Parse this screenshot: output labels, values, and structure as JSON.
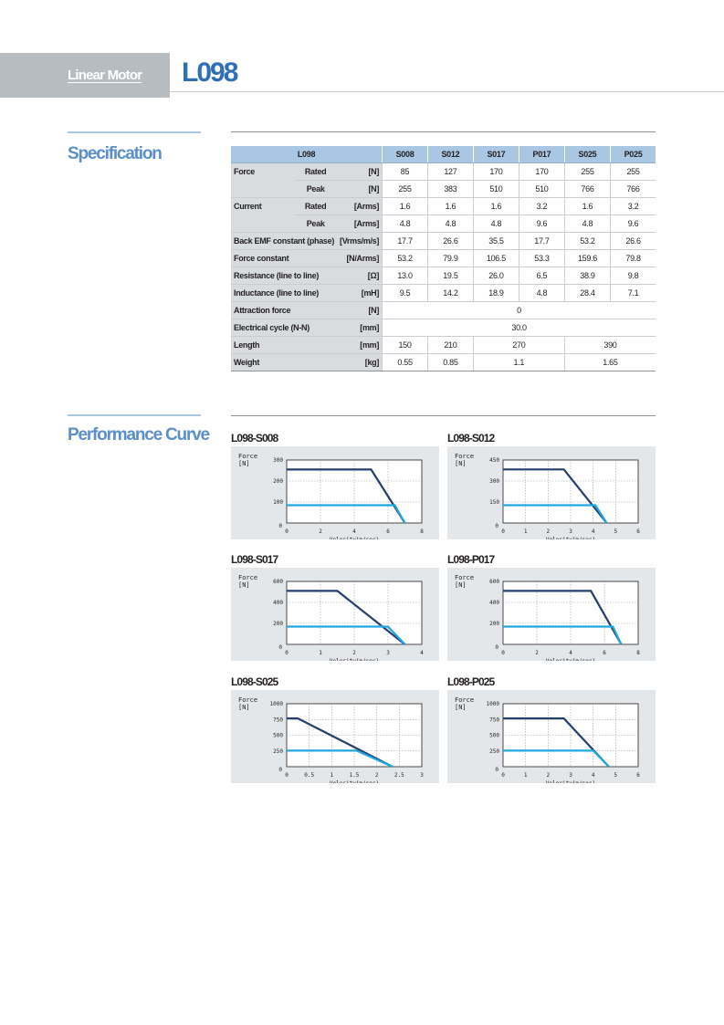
{
  "header": {
    "category": "Linear Motor",
    "model": "L098"
  },
  "sections": {
    "specification": "Specification",
    "performance": "Performance Curve"
  },
  "spec": {
    "model_label": "L098",
    "columns": [
      "S008",
      "S012",
      "S017",
      "P017",
      "S025",
      "P025"
    ],
    "rows": [
      {
        "group": "Force",
        "sub": "Rated",
        "unit": "[N]",
        "values": [
          "85",
          "127",
          "170",
          "170",
          "255",
          "255"
        ]
      },
      {
        "group": "",
        "sub": "Peak",
        "unit": "[N]",
        "values": [
          "255",
          "383",
          "510",
          "510",
          "766",
          "766"
        ]
      },
      {
        "group": "Current",
        "sub": "Rated",
        "unit": "[Arms]",
        "values": [
          "1.6",
          "1.6",
          "1.6",
          "3.2",
          "1.6",
          "3.2"
        ]
      },
      {
        "group": "",
        "sub": "Peak",
        "unit": "[Arms]",
        "values": [
          "4.8",
          "4.8",
          "4.8",
          "9.6",
          "4.8",
          "9.6"
        ]
      },
      {
        "group": "Back EMF constant (phase)",
        "sub": "",
        "unit": "[Vrms/m/s]",
        "values": [
          "17.7",
          "26.6",
          "35.5",
          "17.7",
          "53.2",
          "26.6"
        ]
      },
      {
        "group": "Force constant",
        "sub": "",
        "unit": "[N/Arms]",
        "values": [
          "53.2",
          "79.9",
          "106.5",
          "53.3",
          "159.6",
          "79.8"
        ]
      },
      {
        "group": "Resistance (line to line)",
        "sub": "",
        "unit": "[Ω]",
        "values": [
          "13.0",
          "19.5",
          "26.0",
          "6.5",
          "38.9",
          "9.8"
        ]
      },
      {
        "group": "Inductance (line to line)",
        "sub": "",
        "unit": "[mH]",
        "values": [
          "9.5",
          "14.2",
          "18.9",
          "4.8",
          "28.4",
          "7.1"
        ]
      },
      {
        "group": "Attraction force",
        "sub": "",
        "unit": "[N]",
        "merged": "0"
      },
      {
        "group": "Electrical cycle (N-N)",
        "sub": "",
        "unit": "[mm]",
        "merged": "30.0"
      },
      {
        "group": "Length",
        "sub": "",
        "unit": "[mm]",
        "groups": [
          [
            "150",
            1
          ],
          [
            "210",
            1
          ],
          [
            "270",
            2
          ],
          [
            "390",
            2
          ]
        ]
      },
      {
        "group": "Weight",
        "sub": "",
        "unit": "[kg]",
        "groups": [
          [
            "0.55",
            1
          ],
          [
            "0.85",
            1
          ],
          [
            "1.1",
            2
          ],
          [
            "1.65",
            2
          ]
        ]
      }
    ]
  },
  "colors": {
    "peak_curve": "#233f6e",
    "rated_curve": "#21a7df",
    "panel_bg": "#e3e7ea",
    "accent": "#5a8fcb"
  },
  "chart_data": [
    {
      "type": "line",
      "title": "L098-S008",
      "ylabel": "Force\n[N]",
      "xlabel": "Velocity(m/sec)",
      "xlim": [
        0,
        8
      ],
      "xticks": [
        "0",
        "2",
        "4",
        "6",
        "8"
      ],
      "xtick_vals": [
        0,
        2,
        4,
        6,
        8
      ],
      "ylim": [
        0,
        300
      ],
      "yticks": [
        "100",
        "200",
        "300"
      ],
      "ytick_vals": [
        100,
        200,
        300
      ],
      "series": [
        {
          "x": [
            0,
            5.0,
            7.0
          ],
          "y": [
            255,
            255,
            0
          ]
        },
        {
          "x": [
            0,
            6.4,
            7.0
          ],
          "y": [
            85,
            85,
            0
          ]
        }
      ]
    },
    {
      "type": "line",
      "title": "L098-S012",
      "ylabel": "Force\n[N]",
      "xlabel": "Velocity(m/sec)",
      "xlim": [
        0,
        6
      ],
      "xticks": [
        "0",
        "1",
        "2",
        "3",
        "4",
        "5",
        "6"
      ],
      "xtick_vals": [
        0,
        1,
        2,
        3,
        4,
        5,
        6
      ],
      "ylim": [
        0,
        450
      ],
      "yticks": [
        "150",
        "300",
        "450"
      ],
      "ytick_vals": [
        150,
        300,
        450
      ],
      "series": [
        {
          "x": [
            0,
            2.7,
            4.6
          ],
          "y": [
            383,
            383,
            0
          ]
        },
        {
          "x": [
            0,
            4.1,
            4.6
          ],
          "y": [
            127,
            127,
            0
          ]
        }
      ]
    },
    {
      "type": "line",
      "title": "L098-S017",
      "ylabel": "Force\n[N]",
      "xlabel": "Velocity(m/sec)",
      "xlim": [
        0,
        4
      ],
      "xticks": [
        "0",
        "1",
        "2",
        "3",
        "4"
      ],
      "xtick_vals": [
        0,
        1,
        2,
        3,
        4
      ],
      "ylim": [
        0,
        600
      ],
      "yticks": [
        "200",
        "400",
        "600"
      ],
      "ytick_vals": [
        200,
        400,
        600
      ],
      "series": [
        {
          "x": [
            0,
            1.5,
            3.5
          ],
          "y": [
            510,
            510,
            0
          ]
        },
        {
          "x": [
            0,
            3.0,
            3.5
          ],
          "y": [
            170,
            170,
            0
          ]
        }
      ]
    },
    {
      "type": "line",
      "title": "L098-P017",
      "ylabel": "Force\n[N]",
      "xlabel": "Velocity(m/sec)",
      "xlim": [
        0,
        8
      ],
      "xticks": [
        "0",
        "2",
        "4",
        "6",
        "8"
      ],
      "xtick_vals": [
        0,
        2,
        4,
        6,
        8
      ],
      "ylim": [
        0,
        600
      ],
      "yticks": [
        "200",
        "400",
        "600"
      ],
      "ytick_vals": [
        200,
        400,
        600
      ],
      "series": [
        {
          "x": [
            0,
            5.2,
            7.0
          ],
          "y": [
            510,
            510,
            0
          ]
        },
        {
          "x": [
            0,
            6.5,
            7.0
          ],
          "y": [
            170,
            170,
            0
          ]
        }
      ]
    },
    {
      "type": "line",
      "title": "L098-S025",
      "ylabel": "Force\n[N]",
      "xlabel": "Velocity(m/sec)",
      "xlim": [
        0,
        3
      ],
      "xticks": [
        "0",
        "0.5",
        "1",
        "1.5",
        "2",
        "2.5",
        "3"
      ],
      "xtick_vals": [
        0,
        0.5,
        1,
        1.5,
        2,
        2.5,
        3
      ],
      "ylim": [
        0,
        1000
      ],
      "yticks": [
        "250",
        "500",
        "750",
        "1000"
      ],
      "ytick_vals": [
        250,
        500,
        750,
        1000
      ],
      "series": [
        {
          "x": [
            0,
            0.25,
            2.35
          ],
          "y": [
            766,
            766,
            0
          ]
        },
        {
          "x": [
            0,
            1.55,
            2.35
          ],
          "y": [
            255,
            255,
            0
          ]
        }
      ]
    },
    {
      "type": "line",
      "title": "L098-P025",
      "ylabel": "Force\n[N]",
      "xlabel": "Velocity(m/sec)",
      "xlim": [
        0,
        6
      ],
      "xticks": [
        "0",
        "1",
        "2",
        "3",
        "4",
        "5",
        "6"
      ],
      "xtick_vals": [
        0,
        1,
        2,
        3,
        4,
        5,
        6
      ],
      "ylim": [
        0,
        1000
      ],
      "yticks": [
        "250",
        "500",
        "750",
        "1000"
      ],
      "ytick_vals": [
        250,
        500,
        750,
        1000
      ],
      "series": [
        {
          "x": [
            0,
            2.7,
            4.7
          ],
          "y": [
            766,
            766,
            0
          ]
        },
        {
          "x": [
            0,
            4.0,
            4.7
          ],
          "y": [
            255,
            255,
            0
          ]
        }
      ]
    }
  ]
}
